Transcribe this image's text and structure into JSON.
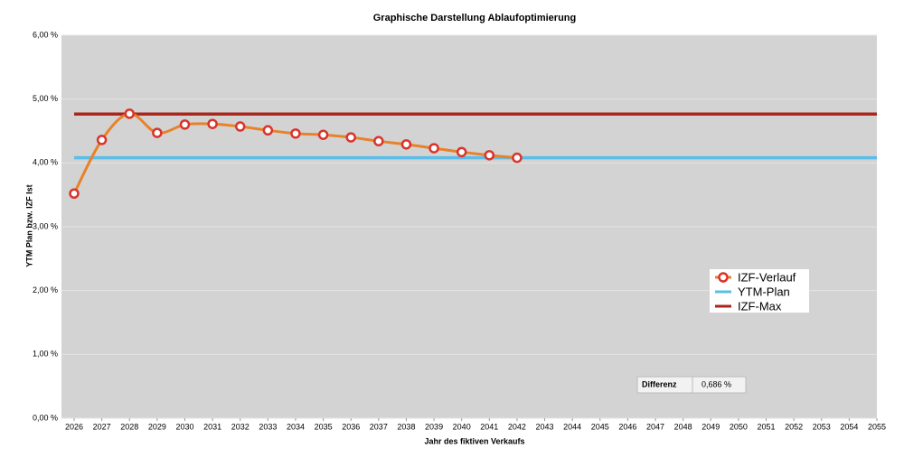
{
  "chart_data": {
    "type": "line",
    "title": "Graphische Darstellung Ablaufoptimierung",
    "x_label": "Jahr des fiktiven Verkaufs",
    "y_label": "YTM Plan bzw. IZF Ist",
    "xlim": [
      2026,
      2055
    ],
    "xticks": [
      2026,
      2027,
      2028,
      2029,
      2030,
      2031,
      2032,
      2033,
      2034,
      2035,
      2036,
      2037,
      2038,
      2039,
      2040,
      2041,
      2042,
      2043,
      2044,
      2045,
      2046,
      2047,
      2048,
      2049,
      2050,
      2051,
      2052,
      2053,
      2054,
      2055
    ],
    "ylim": [
      0,
      6
    ],
    "yticks": [
      {
        "value": 0,
        "label": "0,00 %"
      },
      {
        "value": 1,
        "label": "1,00 %"
      },
      {
        "value": 2,
        "label": "2,00 %"
      },
      {
        "value": 3,
        "label": "3,00 %"
      },
      {
        "value": 4,
        "label": "4,00 %"
      },
      {
        "value": 5,
        "label": "5,00 %"
      },
      {
        "value": 6,
        "label": "6,00 %"
      }
    ],
    "grid": true,
    "legend": "right",
    "series": [
      {
        "name": "IZF-Verlauf",
        "color": "#e8822a",
        "marker_color": "#d9342a",
        "smooth": true,
        "markers": true,
        "x": [
          2026,
          2027,
          2028,
          2029,
          2030,
          2031,
          2032,
          2033,
          2034,
          2035,
          2036,
          2037,
          2038,
          2039,
          2040,
          2041,
          2042
        ],
        "values": [
          3.52,
          4.36,
          4.77,
          4.47,
          4.6,
          4.61,
          4.57,
          4.51,
          4.46,
          4.44,
          4.4,
          4.34,
          4.29,
          4.23,
          4.17,
          4.12,
          4.08
        ]
      },
      {
        "name": "YTM-Plan",
        "color": "#5bbde8",
        "x": [
          2026,
          2055
        ],
        "values": [
          4.08,
          4.08
        ]
      },
      {
        "name": "IZF-Max",
        "color": "#a8261b",
        "x": [
          2026,
          2055
        ],
        "values": [
          4.766,
          4.766
        ]
      }
    ],
    "annotations": [
      {
        "label": "Differenz",
        "text": "0,686 %"
      }
    ]
  }
}
